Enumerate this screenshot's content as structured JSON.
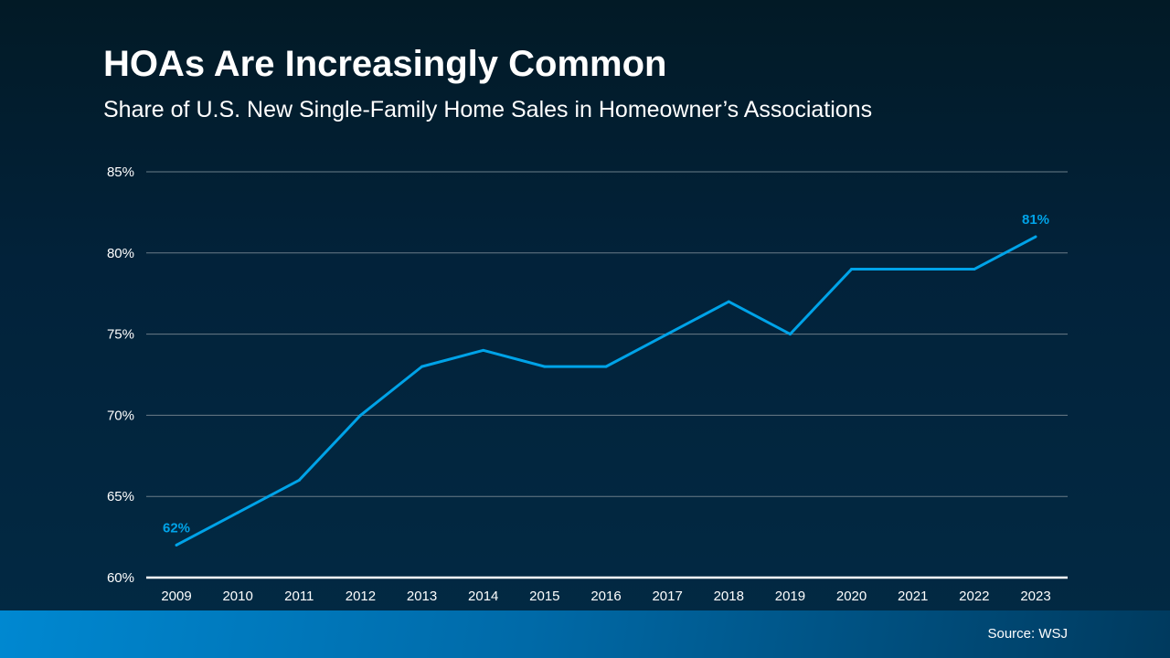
{
  "chart_data": {
    "type": "line",
    "title": "HOAs Are Increasingly Common",
    "subtitle": "Share of U.S. New Single-Family Home Sales in Homeowner’s Associations",
    "categories": [
      "2009",
      "2010",
      "2011",
      "2012",
      "2013",
      "2014",
      "2015",
      "2016",
      "2017",
      "2018",
      "2019",
      "2020",
      "2021",
      "2022",
      "2023"
    ],
    "values": [
      62,
      64,
      66,
      70,
      73,
      74,
      73,
      73,
      75,
      77,
      75,
      79,
      79,
      79,
      81
    ],
    "data_labels": [
      {
        "index": 0,
        "text": "62%"
      },
      {
        "index": 14,
        "text": "81%"
      }
    ],
    "ylim": [
      60,
      85
    ],
    "yticks": [
      60,
      65,
      70,
      75,
      80,
      85
    ],
    "ytick_labels": [
      "60%",
      "65%",
      "70%",
      "75%",
      "80%",
      "85%"
    ],
    "grid": true,
    "line_color": "#00a3e8"
  },
  "footer": {
    "source": "Source: WSJ"
  }
}
